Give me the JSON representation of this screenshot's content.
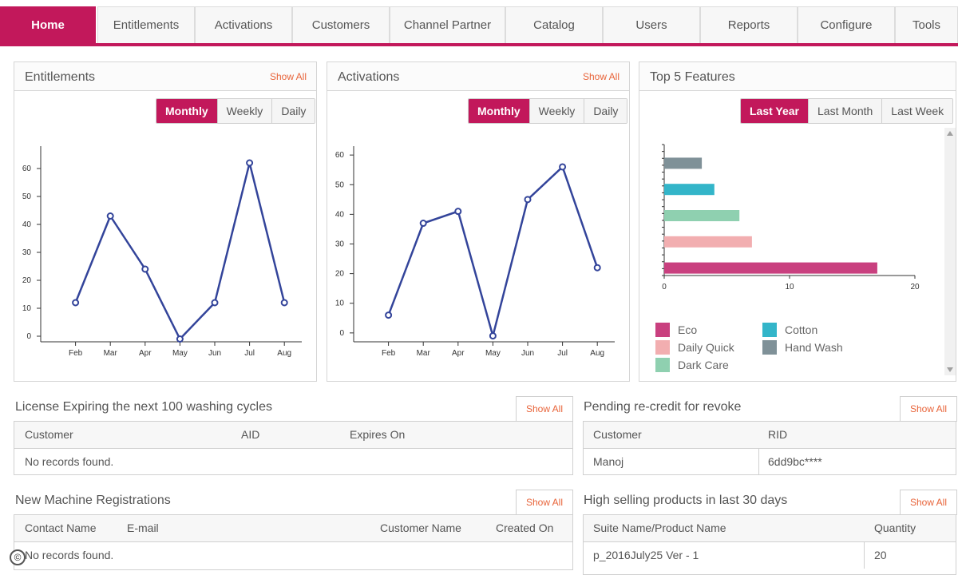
{
  "nav": {
    "tabs": [
      {
        "label": "Home",
        "active": true
      },
      {
        "label": "Entitlements",
        "active": false
      },
      {
        "label": "Activations",
        "active": false
      },
      {
        "label": "Customers",
        "active": false
      },
      {
        "label": "Channel Partner",
        "active": false
      },
      {
        "label": "Catalog",
        "active": false
      },
      {
        "label": "Users",
        "active": false
      },
      {
        "label": "Reports",
        "active": false
      },
      {
        "label": "Configure",
        "active": false
      },
      {
        "label": "Tools",
        "active": false
      }
    ]
  },
  "entitlements_panel": {
    "title": "Entitlements",
    "show_all": "Show All",
    "periods": [
      "Monthly",
      "Weekly",
      "Daily"
    ],
    "active_period": "Monthly"
  },
  "activations_panel": {
    "title": "Activations",
    "show_all": "Show All",
    "periods": [
      "Monthly",
      "Weekly",
      "Daily"
    ],
    "active_period": "Monthly"
  },
  "features_panel": {
    "title": "Top 5 Features",
    "periods": [
      "Last Year",
      "Last Month",
      "Last Week"
    ],
    "active_period": "Last Year",
    "legend": [
      {
        "label": "Eco",
        "color": "#c9407f"
      },
      {
        "label": "Daily Quick",
        "color": "#f2aeb0"
      },
      {
        "label": "Dark Care",
        "color": "#8fd0b0"
      },
      {
        "label": "Cotton",
        "color": "#33b5c9"
      },
      {
        "label": "Hand Wash",
        "color": "#7f9198"
      }
    ]
  },
  "chart_data": [
    {
      "type": "line",
      "categories": [
        "Feb",
        "Mar",
        "Apr",
        "May",
        "Jun",
        "Jul",
        "Aug"
      ],
      "series": [
        {
          "values": [
            12,
            43,
            24,
            -1,
            12,
            62,
            12
          ]
        }
      ],
      "ylim": [
        -2,
        68
      ],
      "yticks": [
        0,
        10,
        20,
        30,
        40,
        50,
        60
      ],
      "line_color": "#33449a"
    },
    {
      "type": "line",
      "categories": [
        "Feb",
        "Mar",
        "Apr",
        "May",
        "Jun",
        "Jul",
        "Aug"
      ],
      "series": [
        {
          "values": [
            6,
            37,
            41,
            -1,
            45,
            56,
            22
          ]
        }
      ],
      "ylim": [
        -3,
        63
      ],
      "yticks": [
        0,
        10,
        20,
        30,
        40,
        50,
        60
      ],
      "line_color": "#33449a"
    },
    {
      "type": "bar",
      "orientation": "horizontal",
      "categories": [
        "Hand Wash",
        "Cotton",
        "Dark Care",
        "Daily Quick",
        "Eco"
      ],
      "values": [
        3,
        4,
        6,
        7,
        17
      ],
      "colors": [
        "#7f9198",
        "#33b5c9",
        "#8fd0b0",
        "#f2aeb0",
        "#c9407f"
      ],
      "xlim": [
        0,
        20
      ],
      "xticks": [
        0,
        10,
        20
      ]
    }
  ],
  "license_table": {
    "title": "License Expiring the next 100 washing cycles",
    "show_all": "Show All",
    "columns": [
      "Customer",
      "AID",
      "Expires On"
    ],
    "empty_text": "No records found."
  },
  "pending_table": {
    "title": "Pending re-credit for revoke",
    "show_all": "Show All",
    "columns": [
      "Customer",
      "RID"
    ],
    "rows": [
      [
        "Manoj",
        "6dd9bc****"
      ]
    ]
  },
  "registrations_table": {
    "title": "New Machine Registrations",
    "show_all": "Show All",
    "columns": [
      "Contact Name",
      "E-mail",
      "Customer Name",
      "Created On"
    ],
    "empty_text": "No records found."
  },
  "products_table": {
    "title": "High selling products in last 30 days",
    "show_all": "Show All",
    "columns": [
      "Suite Name/Product Name",
      "Quantity"
    ],
    "rows": [
      [
        "p_2016July25 Ver - 1",
        "20"
      ]
    ]
  },
  "copyright_symbol": "©"
}
